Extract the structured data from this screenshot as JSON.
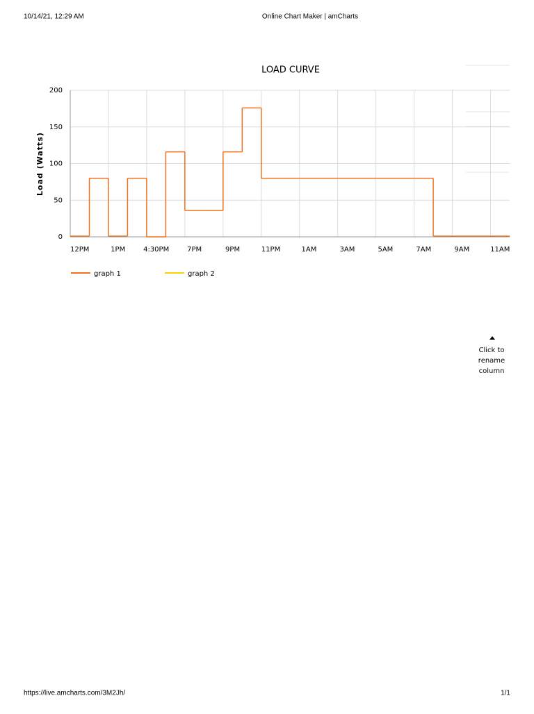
{
  "header": {
    "datetime": "10/14/21, 12:29 AM",
    "page_title": "Online Chart Maker | amCharts"
  },
  "chart_data": {
    "type": "step",
    "title": "LOAD CURVE",
    "y_label": "Load (Watts)",
    "categories": [
      "12PM",
      null,
      "1PM",
      null,
      "4:30PM",
      null,
      "7PM",
      null,
      "9PM",
      null,
      "11PM",
      null,
      "1AM",
      null,
      "3AM",
      null,
      "5AM",
      null,
      "7AM",
      null,
      "9AM",
      null,
      "11AM"
    ],
    "series": [
      {
        "name": "graph 1",
        "color": "#f0701c",
        "values": [
          1,
          80,
          1,
          80,
          0,
          116,
          36,
          36,
          116,
          176,
          80,
          80,
          80,
          80,
          80,
          80,
          80,
          80,
          80,
          1,
          1,
          1,
          1
        ]
      },
      {
        "name": "graph 2",
        "color": "#fcd202"
      }
    ],
    "ylim": [
      0,
      200
    ],
    "yticks": [
      0,
      50,
      100,
      150,
      200
    ],
    "grid": true
  },
  "side_note": "Click to rename column",
  "footer": {
    "url": "https://live.amcharts.com/3M2Jh/",
    "page": "1/1"
  }
}
